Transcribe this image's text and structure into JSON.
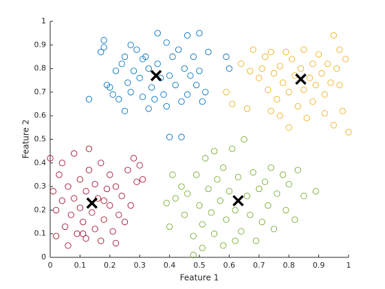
{
  "chart_data": {
    "type": "scatter",
    "xlabel": "Feature 1",
    "ylabel": "Feature 2",
    "xlim": [
      0,
      1
    ],
    "ylim": [
      0,
      1
    ],
    "xticks": [
      0,
      0.1,
      0.2,
      0.3,
      0.4,
      0.5,
      0.6,
      0.7,
      0.8,
      0.9,
      1
    ],
    "yticks": [
      0,
      0.1,
      0.2,
      0.3,
      0.4,
      0.5,
      0.6,
      0.7,
      0.8,
      0.9,
      1
    ],
    "grid": false,
    "series": [
      {
        "color": "#0072BD",
        "marker": "o",
        "x": [
          0.13,
          0.17,
          0.18,
          0.18,
          0.19,
          0.2,
          0.21,
          0.22,
          0.23,
          0.24,
          0.25,
          0.25,
          0.26,
          0.27,
          0.28,
          0.29,
          0.3,
          0.31,
          0.31,
          0.32,
          0.33,
          0.33,
          0.34,
          0.35,
          0.36,
          0.37,
          0.38,
          0.39,
          0.39,
          0.4,
          0.41,
          0.42,
          0.43,
          0.44,
          0.45,
          0.46,
          0.46,
          0.47,
          0.48,
          0.49,
          0.5,
          0.5,
          0.51,
          0.52,
          0.53,
          0.4,
          0.44,
          0.59,
          0.6,
          0.36,
          0.27
        ],
        "y": [
          0.67,
          0.87,
          0.92,
          0.89,
          0.73,
          0.72,
          0.69,
          0.79,
          0.67,
          0.82,
          0.85,
          0.62,
          0.74,
          0.7,
          0.79,
          0.88,
          0.76,
          0.84,
          0.68,
          0.85,
          0.63,
          0.8,
          0.72,
          0.67,
          0.82,
          0.76,
          0.69,
          0.91,
          0.64,
          0.77,
          0.85,
          0.73,
          0.88,
          0.66,
          0.8,
          0.69,
          0.94,
          0.77,
          0.85,
          0.73,
          0.79,
          0.95,
          0.66,
          0.7,
          0.87,
          0.51,
          0.51,
          0.85,
          0.8,
          0.95,
          0.9
        ]
      },
      {
        "color": "#EDB120",
        "marker": "o",
        "x": [
          0.59,
          0.61,
          0.64,
          0.66,
          0.68,
          0.7,
          0.71,
          0.72,
          0.73,
          0.74,
          0.75,
          0.76,
          0.77,
          0.77,
          0.78,
          0.79,
          0.8,
          0.8,
          0.81,
          0.82,
          0.83,
          0.84,
          0.85,
          0.85,
          0.86,
          0.87,
          0.88,
          0.88,
          0.89,
          0.9,
          0.91,
          0.92,
          0.92,
          0.93,
          0.94,
          0.95,
          0.95,
          0.96,
          0.97,
          0.97,
          0.98,
          0.99,
          1.0,
          0.74,
          0.67
        ],
        "y": [
          0.7,
          0.65,
          0.82,
          0.63,
          0.88,
          0.76,
          0.8,
          0.85,
          0.71,
          0.87,
          0.78,
          0.67,
          0.81,
          0.6,
          0.74,
          0.87,
          0.7,
          0.55,
          0.84,
          0.77,
          0.64,
          0.8,
          0.71,
          0.88,
          0.59,
          0.76,
          0.82,
          0.66,
          0.73,
          0.86,
          0.78,
          0.69,
          0.61,
          0.82,
          0.74,
          0.94,
          0.56,
          0.8,
          0.73,
          0.88,
          0.62,
          0.84,
          0.53,
          0.62,
          0.79
        ]
      },
      {
        "color": "#A2142F",
        "marker": "o",
        "x": [
          0.0,
          0.01,
          0.02,
          0.02,
          0.03,
          0.04,
          0.04,
          0.05,
          0.06,
          0.07,
          0.08,
          0.08,
          0.09,
          0.1,
          0.1,
          0.11,
          0.12,
          0.12,
          0.13,
          0.13,
          0.14,
          0.15,
          0.15,
          0.16,
          0.17,
          0.17,
          0.18,
          0.19,
          0.2,
          0.2,
          0.21,
          0.22,
          0.22,
          0.23,
          0.24,
          0.25,
          0.26,
          0.27,
          0.28,
          0.29,
          0.3,
          0.31,
          0.11,
          0.06,
          0.18
        ],
        "y": [
          0.42,
          0.28,
          0.09,
          0.2,
          0.35,
          0.24,
          0.4,
          0.13,
          0.3,
          0.18,
          0.44,
          0.25,
          0.1,
          0.33,
          0.21,
          0.15,
          0.28,
          0.08,
          0.46,
          0.37,
          0.19,
          0.12,
          0.31,
          0.25,
          0.07,
          0.4,
          0.16,
          0.29,
          0.35,
          0.22,
          0.11,
          0.3,
          0.06,
          0.18,
          0.26,
          0.15,
          0.37,
          0.22,
          0.42,
          0.32,
          0.39,
          0.33,
          0.1,
          0.05,
          0.24
        ]
      },
      {
        "color": "#77AC30",
        "marker": "o",
        "x": [
          0.39,
          0.4,
          0.41,
          0.42,
          0.44,
          0.45,
          0.46,
          0.48,
          0.49,
          0.5,
          0.51,
          0.51,
          0.52,
          0.53,
          0.54,
          0.55,
          0.56,
          0.57,
          0.58,
          0.58,
          0.59,
          0.6,
          0.61,
          0.62,
          0.63,
          0.64,
          0.65,
          0.66,
          0.67,
          0.68,
          0.69,
          0.7,
          0.71,
          0.72,
          0.73,
          0.74,
          0.75,
          0.76,
          0.78,
          0.79,
          0.8,
          0.82,
          0.83,
          0.85,
          0.89,
          0.48,
          0.55,
          0.62
        ],
        "y": [
          0.23,
          0.13,
          0.35,
          0.25,
          0.3,
          0.18,
          0.27,
          0.09,
          0.35,
          0.22,
          0.04,
          0.14,
          0.42,
          0.29,
          0.19,
          0.1,
          0.33,
          0.24,
          0.05,
          0.38,
          0.16,
          0.28,
          0.46,
          0.2,
          0.34,
          0.11,
          0.5,
          0.26,
          0.18,
          0.36,
          0.07,
          0.29,
          0.15,
          0.32,
          0.22,
          0.38,
          0.12,
          0.27,
          0.35,
          0.2,
          0.31,
          0.16,
          0.37,
          0.26,
          0.28,
          0.01,
          0.45,
          0.07
        ]
      },
      {
        "color": "#000000",
        "marker": "x",
        "x": [
          0.355,
          0.84,
          0.14,
          0.63
        ],
        "y": [
          0.77,
          0.755,
          0.23,
          0.24
        ]
      }
    ]
  }
}
